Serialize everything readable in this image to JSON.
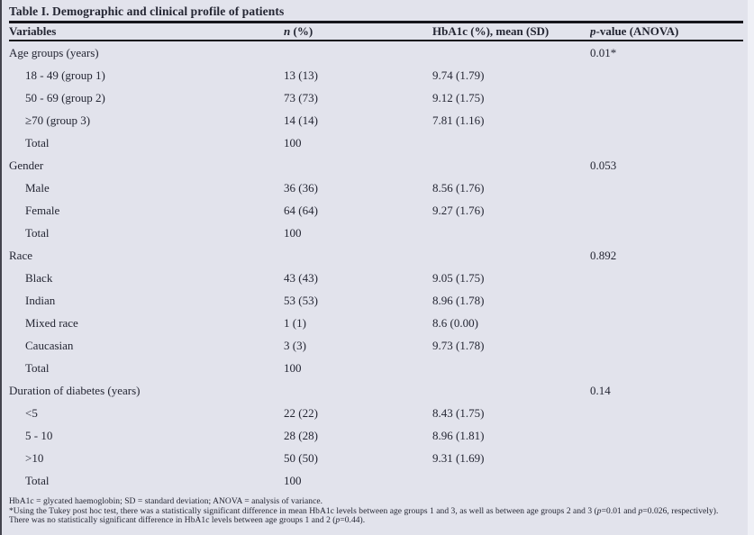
{
  "page": {
    "background_color": "#e2e3ec",
    "text_color": "#242633",
    "rule_color": "#16161c"
  },
  "table": {
    "title": "Table I. Demographic and clinical profile of patients",
    "header": {
      "variables": "Variables",
      "n_italic": "n",
      "n_rest": " (%)",
      "hba1c": "HbA1c (%), mean (SD)",
      "p_italic": "p",
      "p_rest": "-value (ANOVA)"
    },
    "rows": [
      {
        "label": "Age groups (years)",
        "indent": false,
        "n": "",
        "hba1c": "",
        "p": "0.01*"
      },
      {
        "label": "18 - 49 (group 1)",
        "indent": true,
        "n": "13 (13)",
        "hba1c": "9.74 (1.79)",
        "p": ""
      },
      {
        "label": "50 - 69 (group 2)",
        "indent": true,
        "n": "73 (73)",
        "hba1c": "9.12 (1.75)",
        "p": ""
      },
      {
        "label": "≥70 (group 3)",
        "indent": true,
        "n": "14 (14)",
        "hba1c": "7.81 (1.16)",
        "p": ""
      },
      {
        "label": "Total",
        "indent": true,
        "n": "100",
        "hba1c": "",
        "p": ""
      },
      {
        "label": "Gender",
        "indent": false,
        "n": "",
        "hba1c": "",
        "p": "0.053"
      },
      {
        "label": "Male",
        "indent": true,
        "n": "36 (36)",
        "hba1c": "8.56 (1.76)",
        "p": ""
      },
      {
        "label": "Female",
        "indent": true,
        "n": "64 (64)",
        "hba1c": "9.27 (1.76)",
        "p": ""
      },
      {
        "label": "Total",
        "indent": true,
        "n": "100",
        "hba1c": "",
        "p": ""
      },
      {
        "label": "Race",
        "indent": false,
        "n": "",
        "hba1c": "",
        "p": "0.892"
      },
      {
        "label": "Black",
        "indent": true,
        "n": "43 (43)",
        "hba1c": "9.05 (1.75)",
        "p": ""
      },
      {
        "label": "Indian",
        "indent": true,
        "n": "53 (53)",
        "hba1c": "8.96 (1.78)",
        "p": ""
      },
      {
        "label": "Mixed race",
        "indent": true,
        "n": "1 (1)",
        "hba1c": "8.6 (0.00)",
        "p": ""
      },
      {
        "label": "Caucasian",
        "indent": true,
        "n": "3 (3)",
        "hba1c": "9.73 (1.78)",
        "p": ""
      },
      {
        "label": "Total",
        "indent": true,
        "n": "100",
        "hba1c": "",
        "p": ""
      },
      {
        "label": "Duration of diabetes (years)",
        "indent": false,
        "n": "",
        "hba1c": "",
        "p": "0.14"
      },
      {
        "label": "<5",
        "indent": true,
        "n": "22 (22)",
        "hba1c": "8.43 (1.75)",
        "p": ""
      },
      {
        "label": "5 - 10",
        "indent": true,
        "n": "28 (28)",
        "hba1c": "8.96 (1.81)",
        "p": ""
      },
      {
        "label": ">10",
        "indent": true,
        "n": "50 (50)",
        "hba1c": "9.31 (1.69)",
        "p": ""
      },
      {
        "label": "Total",
        "indent": true,
        "n": "100",
        "hba1c": "",
        "p": ""
      }
    ],
    "footnotes": {
      "abbreviations": "HbA1c = glycated haemoglobin; SD = standard deviation; ANOVA = analysis of variance.",
      "significance": {
        "a": "*Using the Tukey post hoc test, there was a statistically significant difference in mean HbA1c levels between age groups 1 and 3, as well as between age groups 2 and 3 (",
        "p1": "p",
        "b": "=0.01 and ",
        "p2": "p",
        "c": "=0.026, respectively). There was no statistically significant difference in HbA1c levels between age groups 1 and 2 (",
        "p3": "p",
        "d": "=0.44)."
      }
    }
  }
}
